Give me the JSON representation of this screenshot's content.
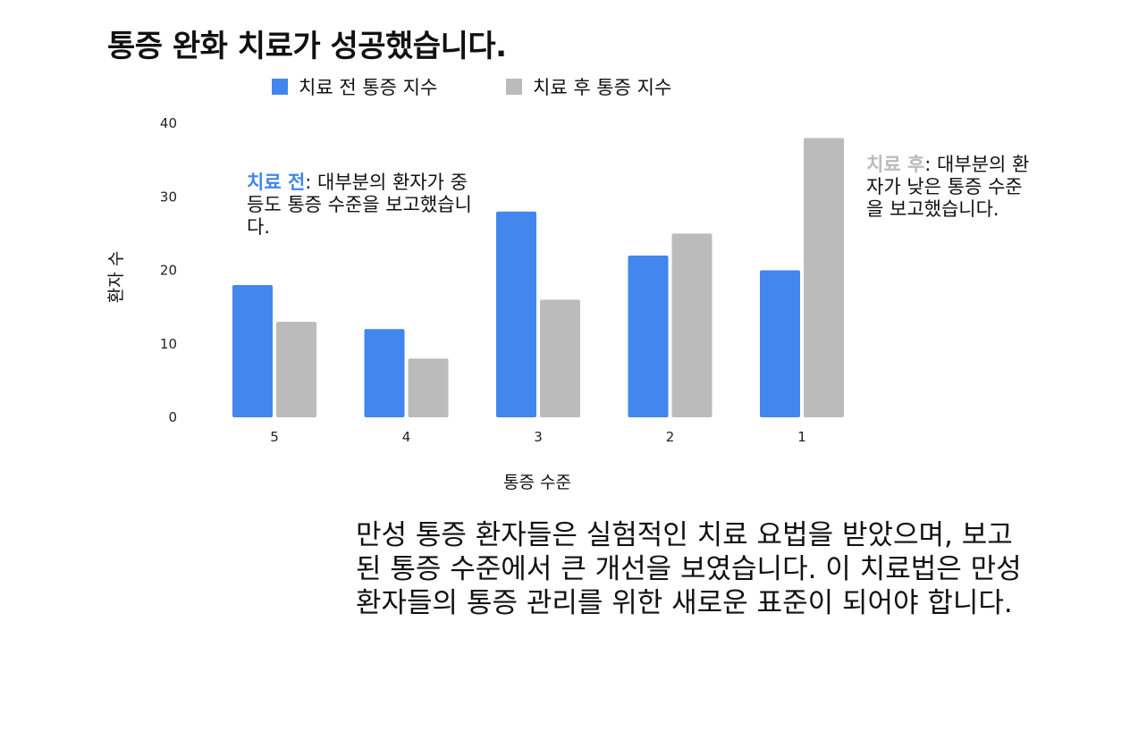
{
  "title": "통증 완화 치료가 성공했습니다.",
  "colors": {
    "before": "#4286EE",
    "after": "#BBBBBB"
  },
  "chart_data": {
    "type": "bar",
    "title": "통증 완화 치료가 성공했습니다.",
    "xlabel": "통증 수준",
    "ylabel": "환자 수",
    "categories": [
      "5",
      "4",
      "3",
      "2",
      "1"
    ],
    "ylim": [
      0,
      40
    ],
    "yticks": [
      0,
      10,
      20,
      30,
      40
    ],
    "grid": false,
    "legend_position": "top",
    "series": [
      {
        "name": "치료 전 통증 지수",
        "values": [
          18,
          12,
          28,
          22,
          20
        ]
      },
      {
        "name": "치료 후 통증 지수",
        "values": [
          13,
          8,
          16,
          25,
          38
        ]
      }
    ]
  },
  "annotations": {
    "before": {
      "key": "치료 전",
      "text": ": 대부분의 환자가 중등도 통증 수준을 보고했습니다."
    },
    "after": {
      "key": "치료 후",
      "text": ": 대부분의 환자가 낮은 통증 수준을 보고했습니다."
    }
  },
  "description": "만성 통증 환자들은 실험적인 치료 요법을 받았으며, 보고된 통증 수준에서 큰 개선을 보였습니다. 이 치료법은 만성 환자들의 통증 관리를 위한 새로운 표준이 되어야 합니다."
}
